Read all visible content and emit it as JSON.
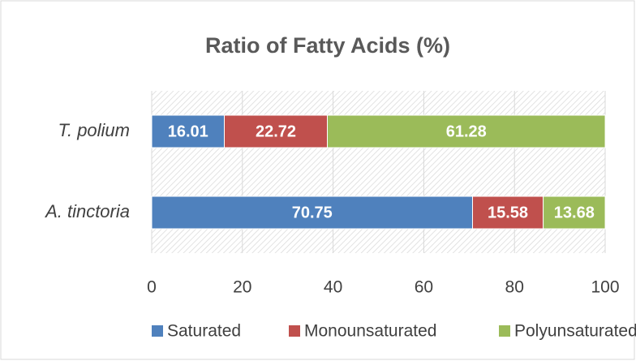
{
  "chart_data": {
    "type": "stacked_bar_horizontal",
    "title": "Ratio of Fatty Acids (%)",
    "categories": [
      "T. polium",
      "A. tinctoria"
    ],
    "series": [
      {
        "name": "Saturated",
        "color": "#4f81bd",
        "values": [
          16.01,
          70.75
        ]
      },
      {
        "name": "Monounsaturated",
        "color": "#c0504d",
        "values": [
          22.72,
          15.58
        ]
      },
      {
        "name": "Polyunsaturated",
        "color": "#9bbb59",
        "values": [
          61.28,
          13.68
        ]
      }
    ],
    "xlim": [
      0,
      100
    ],
    "xticks": [
      0,
      20,
      40,
      60,
      80,
      100
    ],
    "grid": true,
    "legend": "bottom"
  }
}
